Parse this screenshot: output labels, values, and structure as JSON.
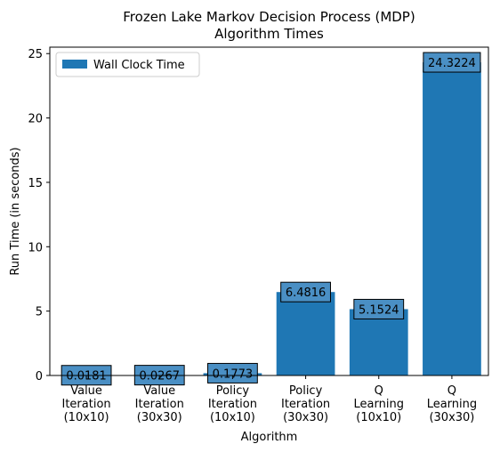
{
  "chart_data": {
    "type": "bar",
    "title": [
      "Frozen Lake Markov Decision Process (MDP)",
      "Algorithm Times"
    ],
    "xlabel": "Algorithm",
    "ylabel": "Run Time (in seconds)",
    "categories": [
      [
        "Value",
        "Iteration",
        "(10x10)"
      ],
      [
        "Value",
        "Iteration",
        "(30x30)"
      ],
      [
        "Policy",
        "Iteration",
        "(10x10)"
      ],
      [
        "Policy",
        "Iteration",
        "(30x30)"
      ],
      [
        "Q",
        "Learning",
        "(10x10)"
      ],
      [
        "Q",
        "Learning",
        "(30x30)"
      ]
    ],
    "series": [
      {
        "name": "Wall Clock Time",
        "values": [
          0.0181,
          0.0267,
          0.1773,
          6.4816,
          5.1524,
          24.3224
        ],
        "labels": [
          "0.0181",
          "0.0267",
          "0.1773",
          "6.4816",
          "5.1524",
          "24.3224"
        ]
      }
    ],
    "ylim": [
      0,
      25.5
    ],
    "yticks": [
      0,
      5,
      10,
      15,
      20,
      25
    ],
    "grid": false,
    "legend": "top-left",
    "colors": {
      "bar": "#1f77b4",
      "label_box": "#4a8fc4",
      "axis": "#000000"
    }
  }
}
